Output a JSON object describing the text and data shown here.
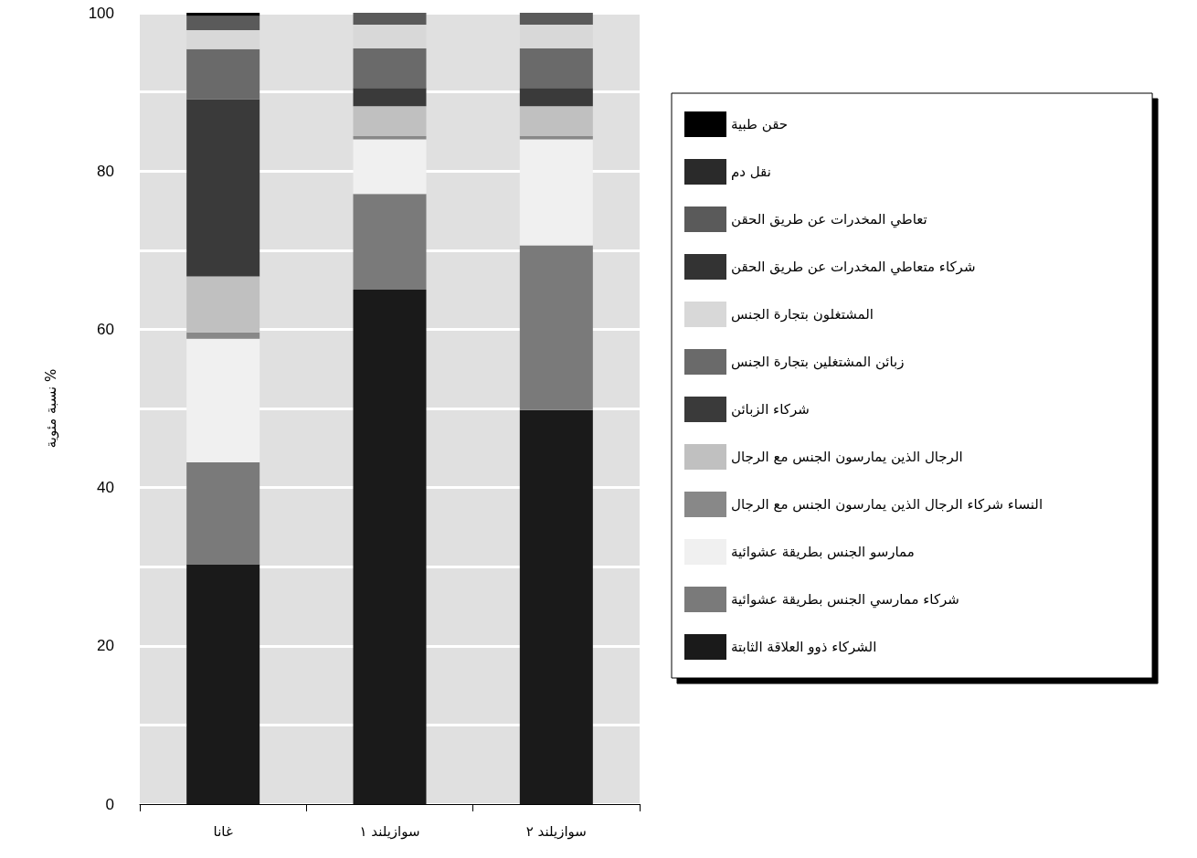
{
  "chart_data": {
    "type": "bar",
    "stacked": true,
    "ylabel": "نسبة مئوية %",
    "categories": [
      "غانا",
      "سوازيلند ١",
      "سوازيلند ٢"
    ],
    "series": [
      {
        "name": "الشركاء ذوو العلاقة الثابتة",
        "color": "#1a1a1a",
        "values": [
          30.3,
          65.0,
          49.8
        ]
      },
      {
        "name": "شركاء ممارسي الجنس بطريقة عشوائية",
        "color": "#7a7a7a",
        "values": [
          12.9,
          12.1,
          20.8
        ]
      },
      {
        "name": "ممارسو الجنس بطريقة عشوائية",
        "color": "#f0f0f0",
        "values": [
          15.6,
          6.9,
          13.4
        ]
      },
      {
        "name": "النساء شركاء الرجال الذين يمارسون الجنس مع الرجال",
        "color": "#888888",
        "values": [
          0.8,
          0.4,
          0.4
        ]
      },
      {
        "name": "الرجال الذين يمارسون الجنس مع الرجال",
        "color": "#c0c0c0",
        "values": [
          7.1,
          3.8,
          3.8
        ]
      },
      {
        "name": "شركاء الزبائن",
        "color": "#3a3a3a",
        "values": [
          22.4,
          2.3,
          2.3
        ]
      },
      {
        "name": "زبائن المشتغلين بتجارة الجنس",
        "color": "#6a6a6a",
        "values": [
          6.3,
          5.0,
          5.0
        ]
      },
      {
        "name": "المشتغلون بتجارة الجنس",
        "color": "#d8d8d8",
        "values": [
          2.4,
          3.0,
          3.0
        ]
      },
      {
        "name": "شركاء متعاطي المخدرات عن طريق الحقن",
        "color": "#333333",
        "values": [
          0,
          0,
          0
        ]
      },
      {
        "name": "تعاطي المخدرات عن طريق الحقن",
        "color": "#5a5a5a",
        "values": [
          1.8,
          1.5,
          1.5
        ]
      },
      {
        "name": "نقل دم",
        "color": "#2a2a2a",
        "values": [
          0,
          0,
          0
        ]
      },
      {
        "name": "حقن طبية",
        "color": "#000000",
        "values": [
          0.4,
          0,
          0
        ]
      }
    ],
    "ylim": [
      0,
      100
    ],
    "yticks": [
      0,
      {
        "value": 10,
        "label": null
      },
      20,
      {
        "value": 30,
        "label": null
      },
      40,
      {
        "value": 50,
        "label": null
      },
      60,
      {
        "value": 70,
        "label": null
      },
      80,
      {
        "value": 90,
        "label": null
      },
      100
    ],
    "grid": "y",
    "legend": "right"
  }
}
